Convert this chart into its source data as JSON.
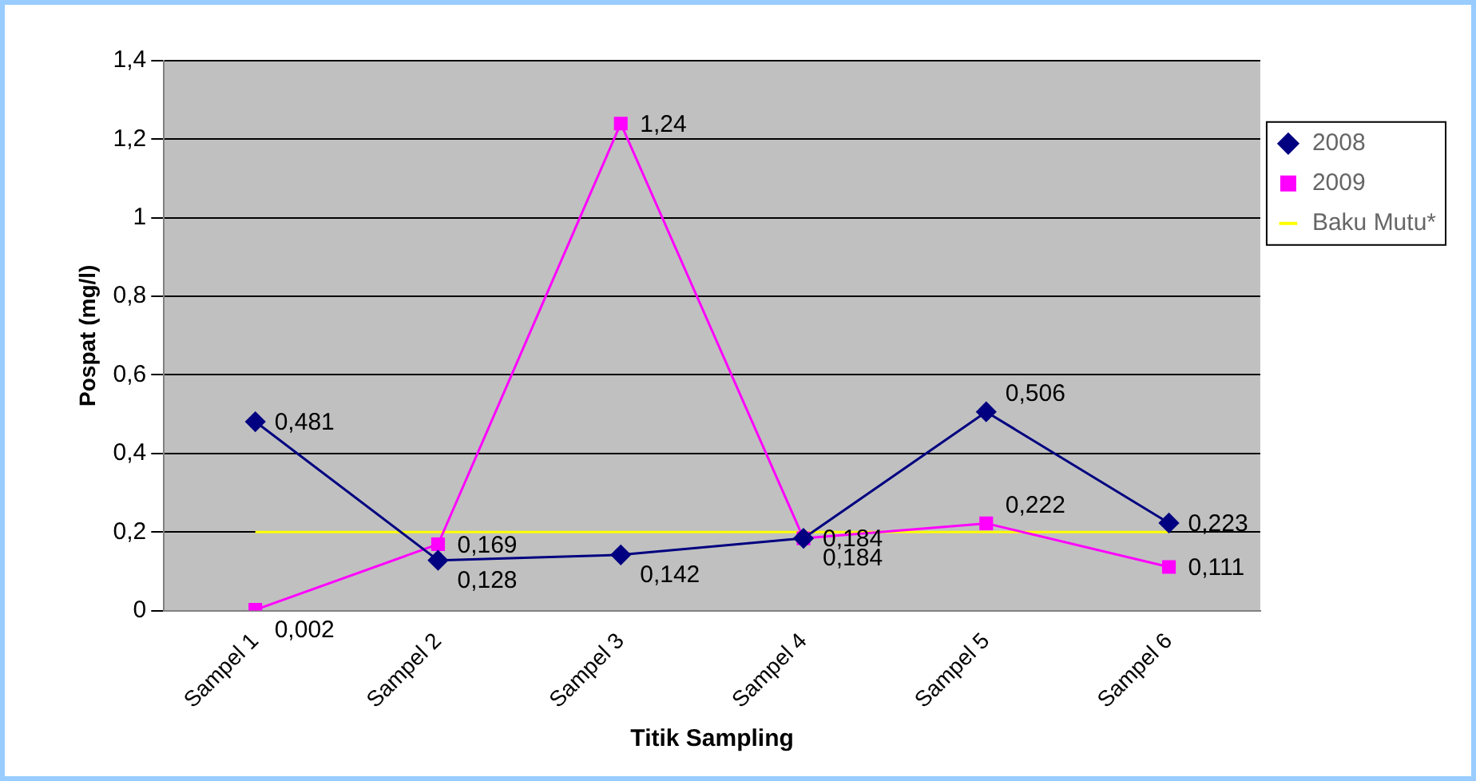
{
  "chart_data": {
    "type": "line",
    "xlabel": "Titik Sampling",
    "ylabel": "Pospat (mg/l)",
    "categories": [
      "Sampel 1",
      "Sampel 2",
      "Sampel 3",
      "Sampel 4",
      "Sampel 5",
      "Sampel 6"
    ],
    "series": [
      {
        "name": "2008",
        "color": "#000080",
        "marker": "diamond",
        "values": [
          0.481,
          0.128,
          0.142,
          0.184,
          0.506,
          0.223
        ],
        "value_labels": [
          "0,481",
          "0,128",
          "0,142",
          "0,184",
          "0,506",
          "0,223"
        ]
      },
      {
        "name": "2009",
        "color": "#ff00ff",
        "marker": "square",
        "values": [
          0.002,
          0.169,
          1.24,
          0.184,
          0.222,
          0.111
        ],
        "value_labels": [
          "0,002",
          "0,169",
          "1,24",
          "0,184",
          "0,222",
          "0,111"
        ]
      },
      {
        "name": "Baku Mutu*",
        "color": "#ffff00",
        "marker": "none",
        "values": [
          0.2,
          0.2,
          0.2,
          0.2,
          0.2,
          0.2
        ]
      }
    ],
    "ylim": [
      0,
      1.4
    ],
    "yticks": [
      0,
      {
        "value": 0.2,
        "label": "0,2"
      },
      {
        "value": 0.4,
        "label": "0,4"
      },
      {
        "value": 0.6,
        "label": "0,6"
      },
      {
        "value": 0.8,
        "label": "0,8"
      },
      1,
      {
        "value": 1.2,
        "label": "1,2"
      },
      {
        "value": 1.4,
        "label": "1,4"
      }
    ],
    "grid": "y",
    "legend": "right",
    "line_style": "solid"
  }
}
